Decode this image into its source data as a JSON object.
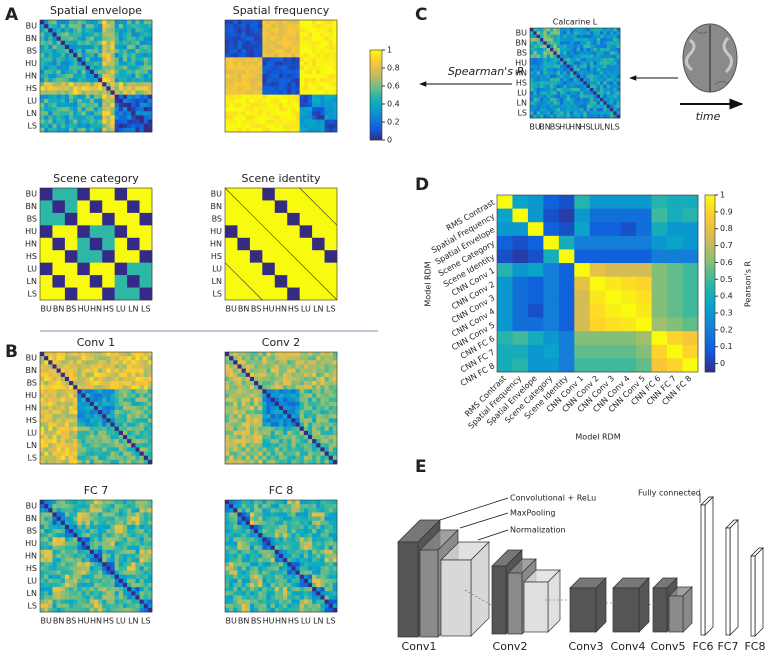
{
  "panel_labels": [
    "A",
    "B",
    "C",
    "D",
    "E"
  ],
  "scene_labels": [
    "BU",
    "BN",
    "BS",
    "HU",
    "HN",
    "HS",
    "LU",
    "LN",
    "LS"
  ],
  "panel_a": {
    "titles": [
      "Spatial envelope",
      "Spatial frequency",
      "Scene category",
      "Scene identity"
    ],
    "colorbar": {
      "lim": [
        0,
        1
      ],
      "ticks": [
        0,
        0.2,
        0.4,
        0.6,
        0.8,
        1
      ]
    }
  },
  "panel_b": {
    "titles": [
      "Conv 1",
      "Conv 2",
      "FC 7",
      "FC 8"
    ]
  },
  "panel_c": {
    "title": "Calcarine L",
    "arrow_label": "Spearman's R",
    "time_label": "time"
  },
  "chart_data": {
    "type": "heatmap",
    "labels": [
      "RMS Contrast",
      "Spatial Frequency",
      "Spatial Envelope",
      "Scene Category",
      "Scene Identity",
      "CNN Conv 1",
      "CNN Conv 2",
      "CNN Conv 3",
      "CNN Conv 4",
      "CNN Conv 5",
      "CNN FC 6",
      "CNN FC 7",
      "CNN FC 8"
    ],
    "values": [
      [
        1,
        0.35,
        0.3,
        0.1,
        0.05,
        0.45,
        0.3,
        0.3,
        0.3,
        0.3,
        0.45,
        0.4,
        0.4
      ],
      [
        0.35,
        1,
        0.3,
        0.05,
        0,
        0.3,
        0.15,
        0.15,
        0.15,
        0.15,
        0.5,
        0.4,
        0.45
      ],
      [
        0.3,
        0.3,
        1,
        0.1,
        0.05,
        0.35,
        0.1,
        0.1,
        0.05,
        0.15,
        0.4,
        0.3,
        0.3
      ],
      [
        0.1,
        0.05,
        0.1,
        1,
        0.4,
        0.2,
        0.2,
        0.2,
        0.2,
        0.2,
        0.3,
        0.35,
        0.3
      ],
      [
        0.05,
        0,
        0.05,
        0.4,
        1,
        0.1,
        0.1,
        0.1,
        0.1,
        0.1,
        0.2,
        0.2,
        0.2
      ],
      [
        0.45,
        0.3,
        0.35,
        0.2,
        0.1,
        1,
        0.8,
        0.75,
        0.75,
        0.75,
        0.6,
        0.55,
        0.5
      ],
      [
        0.3,
        0.15,
        0.1,
        0.2,
        0.1,
        0.8,
        1,
        0.95,
        0.92,
        0.9,
        0.6,
        0.55,
        0.5
      ],
      [
        0.3,
        0.15,
        0.1,
        0.2,
        0.1,
        0.75,
        0.95,
        1,
        0.97,
        0.93,
        0.6,
        0.55,
        0.5
      ],
      [
        0.3,
        0.15,
        0.05,
        0.2,
        0.1,
        0.75,
        0.92,
        0.97,
        1,
        0.95,
        0.6,
        0.55,
        0.5
      ],
      [
        0.3,
        0.15,
        0.15,
        0.2,
        0.1,
        0.75,
        0.9,
        0.93,
        0.95,
        1,
        0.65,
        0.6,
        0.55
      ],
      [
        0.45,
        0.5,
        0.4,
        0.3,
        0.2,
        0.6,
        0.6,
        0.6,
        0.6,
        0.65,
        1,
        0.9,
        0.85
      ],
      [
        0.4,
        0.4,
        0.3,
        0.35,
        0.2,
        0.55,
        0.55,
        0.55,
        0.55,
        0.6,
        0.9,
        1,
        0.9
      ],
      [
        0.4,
        0.45,
        0.3,
        0.3,
        0.2,
        0.5,
        0.5,
        0.5,
        0.5,
        0.55,
        0.85,
        0.9,
        1
      ]
    ],
    "xlabel": "Model RDM",
    "ylabel": "Model RDM",
    "colorbar_label": "Pearson's R",
    "clim": [
      -0.05,
      1
    ],
    "cticks": [
      0,
      0.1,
      0.2,
      0.3,
      0.4,
      0.5,
      0.6,
      0.7,
      0.8,
      0.9,
      1
    ]
  },
  "panel_e": {
    "annotations": [
      "Convolutional + ReLu",
      "MaxPooling",
      "Normalization",
      "Fully connected"
    ],
    "layers": [
      "Conv1",
      "Conv2",
      "Conv3",
      "Conv4",
      "Conv5",
      "FC6",
      "FC7",
      "FC8"
    ]
  }
}
